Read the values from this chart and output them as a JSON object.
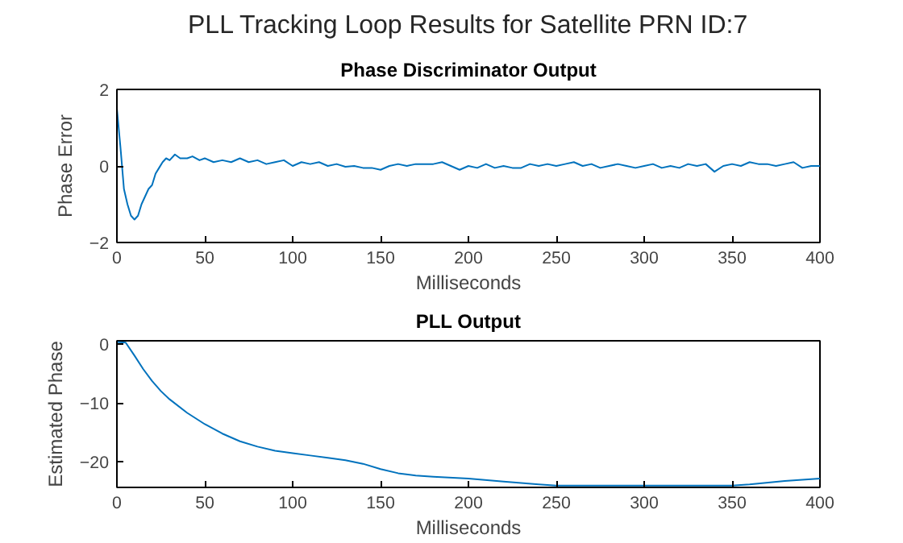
{
  "chart_data": [
    {
      "type": "line",
      "title": "Phase Discriminator Output",
      "xlabel": "Milliseconds",
      "ylabel": "Phase Error",
      "annotations": [
        "PLL Tracking Loop Results for Satellite PRN ID:7"
      ],
      "x": [
        0,
        2,
        4,
        6,
        8,
        10,
        12,
        14,
        16,
        18,
        20,
        22,
        24,
        26,
        28,
        30,
        33,
        36,
        40,
        43,
        47,
        50,
        55,
        60,
        65,
        70,
        75,
        80,
        85,
        90,
        95,
        100,
        105,
        110,
        115,
        120,
        125,
        130,
        135,
        140,
        145,
        150,
        155,
        160,
        165,
        170,
        175,
        180,
        185,
        190,
        195,
        200,
        205,
        210,
        215,
        220,
        225,
        230,
        235,
        240,
        245,
        250,
        255,
        260,
        265,
        270,
        275,
        280,
        285,
        290,
        295,
        300,
        305,
        310,
        315,
        320,
        325,
        330,
        335,
        340,
        345,
        350,
        355,
        360,
        365,
        370,
        375,
        380,
        385,
        390,
        395,
        400
      ],
      "series": [
        {
          "color": "#0072bd",
          "values": [
            1.5,
            0.5,
            -0.6,
            -1.0,
            -1.3,
            -1.4,
            -1.3,
            -1.0,
            -0.8,
            -0.6,
            -0.5,
            -0.2,
            -0.05,
            0.1,
            0.2,
            0.15,
            0.3,
            0.2,
            0.2,
            0.25,
            0.15,
            0.2,
            0.1,
            0.15,
            0.1,
            0.2,
            0.1,
            0.15,
            0.05,
            0.1,
            0.15,
            0.0,
            0.1,
            0.05,
            0.1,
            0.0,
            0.05,
            -0.02,
            0.0,
            -0.05,
            -0.05,
            -0.1,
            0.0,
            0.05,
            0.0,
            0.05,
            0.05,
            0.05,
            0.1,
            0.0,
            -0.1,
            0.0,
            -0.05,
            0.05,
            -0.05,
            0.0,
            -0.05,
            -0.05,
            0.05,
            0.0,
            0.05,
            0.0,
            0.05,
            0.1,
            0.0,
            0.05,
            -0.05,
            0.0,
            0.05,
            0.0,
            -0.05,
            0.0,
            0.05,
            -0.05,
            0.0,
            -0.05,
            0.05,
            0.0,
            0.05,
            -0.15,
            0.0,
            0.05,
            0.0,
            0.1,
            0.05,
            0.05,
            0.0,
            0.05,
            0.1,
            -0.05,
            0.0,
            0.0
          ]
        }
      ],
      "xlim": [
        0,
        400
      ],
      "xticks": [
        0,
        50,
        100,
        150,
        200,
        250,
        300,
        350,
        400
      ],
      "ylim": [
        -2,
        2
      ],
      "yticks": [
        -2,
        0,
        2
      ],
      "grid": false
    },
    {
      "type": "line",
      "title": "PLL Output",
      "xlabel": "Milliseconds",
      "ylabel": "Estimated Phase",
      "x": [
        0,
        5,
        10,
        15,
        20,
        25,
        30,
        40,
        50,
        60,
        70,
        80,
        90,
        100,
        110,
        120,
        130,
        140,
        150,
        160,
        170,
        180,
        200,
        220,
        240,
        250,
        280,
        300,
        330,
        350,
        360,
        380,
        400
      ],
      "series": [
        {
          "color": "#0072bd",
          "values": [
            0.3,
            0.2,
            -2.0,
            -4.3,
            -6.3,
            -8.0,
            -9.4,
            -11.7,
            -13.6,
            -15.2,
            -16.5,
            -17.4,
            -18.1,
            -18.5,
            -18.9,
            -19.3,
            -19.7,
            -20.3,
            -21.2,
            -21.9,
            -22.3,
            -22.5,
            -22.8,
            -23.3,
            -23.8,
            -24.0,
            -24.0,
            -24.0,
            -24.0,
            -24.0,
            -23.8,
            -23.2,
            -22.8
          ]
        }
      ],
      "xlim": [
        0,
        400
      ],
      "xticks": [
        0,
        50,
        100,
        150,
        200,
        250,
        300,
        350,
        400
      ],
      "ylim": [
        -24.3,
        0.5
      ],
      "yticks": [
        -20,
        -10,
        0
      ],
      "grid": false
    }
  ]
}
